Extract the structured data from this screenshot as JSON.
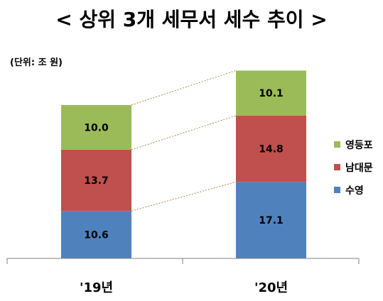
{
  "chart_data": {
    "type": "bar",
    "stacked": true,
    "title": "< 상위 3개 세무서 세수 추이 >",
    "unit_label": "(단위: 조 원)",
    "categories": [
      "'19년",
      "'20년"
    ],
    "series": [
      {
        "name": "수영",
        "values": [
          10.6,
          17.1
        ],
        "color": "#4f81bd"
      },
      {
        "name": "남대문",
        "values": [
          13.7,
          14.8
        ],
        "color": "#c0504d"
      },
      {
        "name": "영등포",
        "values": [
          10.0,
          10.1
        ],
        "color": "#9bbb59"
      }
    ],
    "value_labels": [
      [
        "10.6",
        "17.1"
      ],
      [
        "13.7",
        "14.8"
      ],
      [
        "10.0",
        "10.1"
      ]
    ],
    "legend": {
      "placement": "right",
      "order": [
        "영등포",
        "남대문",
        "수영"
      ]
    },
    "grid": false
  }
}
